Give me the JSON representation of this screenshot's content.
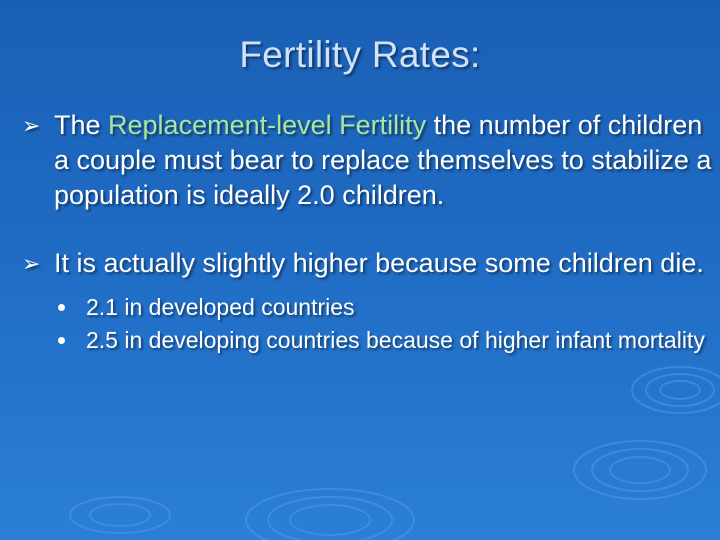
{
  "slide": {
    "title": "Fertility Rates:",
    "bullets": [
      {
        "lead": "The ",
        "highlight": "Replacement-level Fertility",
        "rest": " the number of children a couple must bear to replace themselves to stabilize a population is ideally 2.0 children."
      },
      {
        "text": "It is actually slightly higher because some children die.",
        "subitems": [
          "2.1 in developed countries",
          "2.5 in developing countries because of higher infant mortality"
        ]
      }
    ]
  },
  "colors": {
    "background": "#1f6bc4",
    "title": "#cfe2f7",
    "highlight": "#a8e6a0",
    "text": "#ffffff"
  },
  "icons": {
    "bullet": "arrow-bullet-icon",
    "sub_bullet": "dot-bullet-icon"
  }
}
